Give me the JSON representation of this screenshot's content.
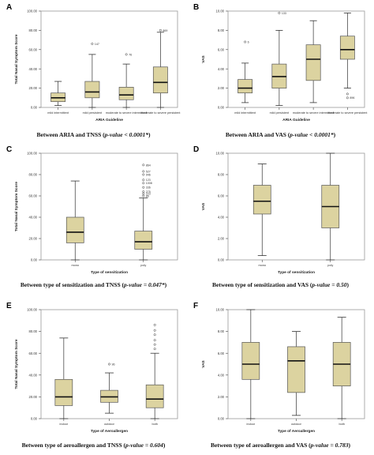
{
  "colors": {
    "box_fill": "#dcd3a0",
    "box_stroke": "#555555",
    "median": "#111111",
    "frame": "#9a9a9a"
  },
  "panels": [
    {
      "letter": "A",
      "caption": {
        "lead": "Between ARIA and TNSS (",
        "stat": "p-value < 0.0001*",
        "tail": ")"
      }
    },
    {
      "letter": "B",
      "caption": {
        "lead": "Between ARIA and VAS (",
        "stat": "p-value < 0.0001*",
        "tail": ")"
      }
    },
    {
      "letter": "C",
      "caption": {
        "lead": "Between type of sensitization and TNSS (",
        "stat": "p-value = 0.047*",
        "tail": ")"
      }
    },
    {
      "letter": "D",
      "caption": {
        "lead": "Between type of sensitization and VAS (",
        "stat": "p-value = 0.50",
        "tail": ")"
      }
    },
    {
      "letter": "E",
      "caption": {
        "lead": "Between type of aeroallergen and TNSS (",
        "stat": "p-value = 0.604",
        "tail": ")"
      }
    },
    {
      "letter": "F",
      "caption": {
        "lead": "Between type of aeroallergen and VAS (",
        "stat": "p-value = 0.783",
        "tail": ")"
      }
    }
  ],
  "chart_data": [
    {
      "type": "boxplot",
      "ylabel": "Total Nasal Symptom Score",
      "xlabel": "ARIA Guideline",
      "ylim": [
        0,
        100
      ],
      "yticks": [
        "0.00",
        "20.00",
        "40.00",
        "60.00",
        "80.00",
        "100.00"
      ],
      "categories": [
        "mild intermittent",
        "mild persistent",
        "moderate to severe intermittent",
        "moderate to severe persistent"
      ],
      "boxes": [
        {
          "min": 2,
          "q1": 6,
          "median": 10,
          "q3": 15,
          "max": 27,
          "outliers": []
        },
        {
          "min": 0,
          "q1": 10,
          "median": 16,
          "q3": 27,
          "max": 55,
          "outliers": [
            {
              "value": 66,
              "label": "147"
            }
          ]
        },
        {
          "min": 0,
          "q1": 8,
          "median": 13,
          "q3": 21,
          "max": 45,
          "outliers": [
            {
              "value": 55,
              "label": "76"
            }
          ]
        },
        {
          "min": 0,
          "q1": 15,
          "median": 26,
          "q3": 42,
          "max": 78,
          "outliers": [
            {
              "value": 80,
              "label": "869"
            }
          ]
        }
      ]
    },
    {
      "type": "boxplot",
      "ylabel": "VAS",
      "xlabel": "ARIA Guideline",
      "ylim": [
        0,
        10
      ],
      "yticks": [
        "0.00",
        "2.00",
        "4.00",
        "6.00",
        "8.00",
        "10.00"
      ],
      "categories": [
        "mild intermittent",
        "mild persistent",
        "moderate to severe intermittent",
        "moderate to severe persistent"
      ],
      "boxes": [
        {
          "min": 0.5,
          "q1": 1.5,
          "median": 2.0,
          "q3": 2.9,
          "max": 4.6,
          "outliers": [
            {
              "value": 6.8,
              "label": "6"
            }
          ]
        },
        {
          "min": 0.2,
          "q1": 2.0,
          "median": 3.2,
          "q3": 4.5,
          "max": 8.0,
          "outliers": [
            {
              "value": 9.8,
              "label": "133"
            }
          ]
        },
        {
          "min": 0.5,
          "q1": 2.8,
          "median": 5.0,
          "q3": 6.5,
          "max": 9.0,
          "outliers": []
        },
        {
          "min": 2.0,
          "q1": 5.0,
          "median": 6.0,
          "q3": 7.4,
          "max": 9.8,
          "outliers": [
            {
              "value": 1.4,
              "label": ""
            },
            {
              "value": 1.0,
              "label": "896"
            }
          ]
        }
      ]
    },
    {
      "type": "boxplot",
      "ylabel": "Total Nasal Symptom Score",
      "xlabel": "Type of sensitization",
      "ylim": [
        0,
        100
      ],
      "yticks": [
        "0.00",
        "20.00",
        "40.00",
        "60.00",
        "80.00",
        "100.00"
      ],
      "categories": [
        "mono",
        "poly"
      ],
      "boxes": [
        {
          "min": 0,
          "q1": 16,
          "median": 26,
          "q3": 40,
          "max": 74,
          "outliers": []
        },
        {
          "min": 0,
          "q1": 10,
          "median": 17,
          "q3": 27,
          "max": 58,
          "outliers": [
            {
              "value": 89,
              "label": "864"
            },
            {
              "value": 83,
              "label": "527"
            },
            {
              "value": 80,
              "label": "946"
            },
            {
              "value": 75,
              "label": "123"
            },
            {
              "value": 72,
              "label": "1008"
            },
            {
              "value": 68,
              "label": "336"
            },
            {
              "value": 64,
              "label": "275"
            },
            {
              "value": 62,
              "label": "223"
            },
            {
              "value": 60,
              "label": "86"
            }
          ]
        }
      ]
    },
    {
      "type": "boxplot",
      "ylabel": "VAS",
      "xlabel": "Type of sensitization",
      "ylim": [
        0,
        10
      ],
      "yticks": [
        "0.00",
        "2.00",
        "4.00",
        "6.00",
        "8.00",
        "10.00"
      ],
      "categories": [
        "mono",
        "poly"
      ],
      "boxes": [
        {
          "min": 0.4,
          "q1": 4.3,
          "median": 5.5,
          "q3": 7.0,
          "max": 9.0,
          "outliers": []
        },
        {
          "min": 0.0,
          "q1": 3.0,
          "median": 5.0,
          "q3": 7.0,
          "max": 10.0,
          "outliers": []
        }
      ]
    },
    {
      "type": "boxplot",
      "ylabel": "Total Nasal Symptom Score",
      "xlabel": "Type of Aeroallergen",
      "ylim": [
        0,
        100
      ],
      "yticks": [
        "0.00",
        "20.00",
        "40.00",
        "60.00",
        "80.00",
        "100.00"
      ],
      "categories": [
        "indoor",
        "outdoor",
        "both"
      ],
      "boxes": [
        {
          "min": 0,
          "q1": 12,
          "median": 20,
          "q3": 36,
          "max": 74,
          "outliers": []
        },
        {
          "min": 5,
          "q1": 15,
          "median": 20,
          "q3": 26,
          "max": 42,
          "outliers": [
            {
              "value": 50,
              "label": "96"
            }
          ]
        },
        {
          "min": 0,
          "q1": 10,
          "median": 18,
          "q3": 31,
          "max": 60,
          "outliers": [
            {
              "value": 86,
              "label": ""
            },
            {
              "value": 81,
              "label": ""
            },
            {
              "value": 77,
              "label": ""
            },
            {
              "value": 72,
              "label": ""
            },
            {
              "value": 68,
              "label": ""
            },
            {
              "value": 64,
              "label": ""
            }
          ]
        }
      ]
    },
    {
      "type": "boxplot",
      "ylabel": "VAS",
      "xlabel": "Type of Aeroallergen",
      "ylim": [
        0,
        10
      ],
      "yticks": [
        "0.00",
        "2.00",
        "4.00",
        "6.00",
        "8.00",
        "10.00"
      ],
      "categories": [
        "indoor",
        "outdoor",
        "both"
      ],
      "boxes": [
        {
          "min": 0.0,
          "q1": 3.6,
          "median": 5.0,
          "q3": 7.0,
          "max": 10.0,
          "outliers": []
        },
        {
          "min": 0.3,
          "q1": 2.4,
          "median": 5.3,
          "q3": 6.6,
          "max": 8.0,
          "outliers": []
        },
        {
          "min": 0.0,
          "q1": 3.0,
          "median": 5.0,
          "q3": 7.0,
          "max": 9.3,
          "outliers": []
        }
      ]
    }
  ]
}
